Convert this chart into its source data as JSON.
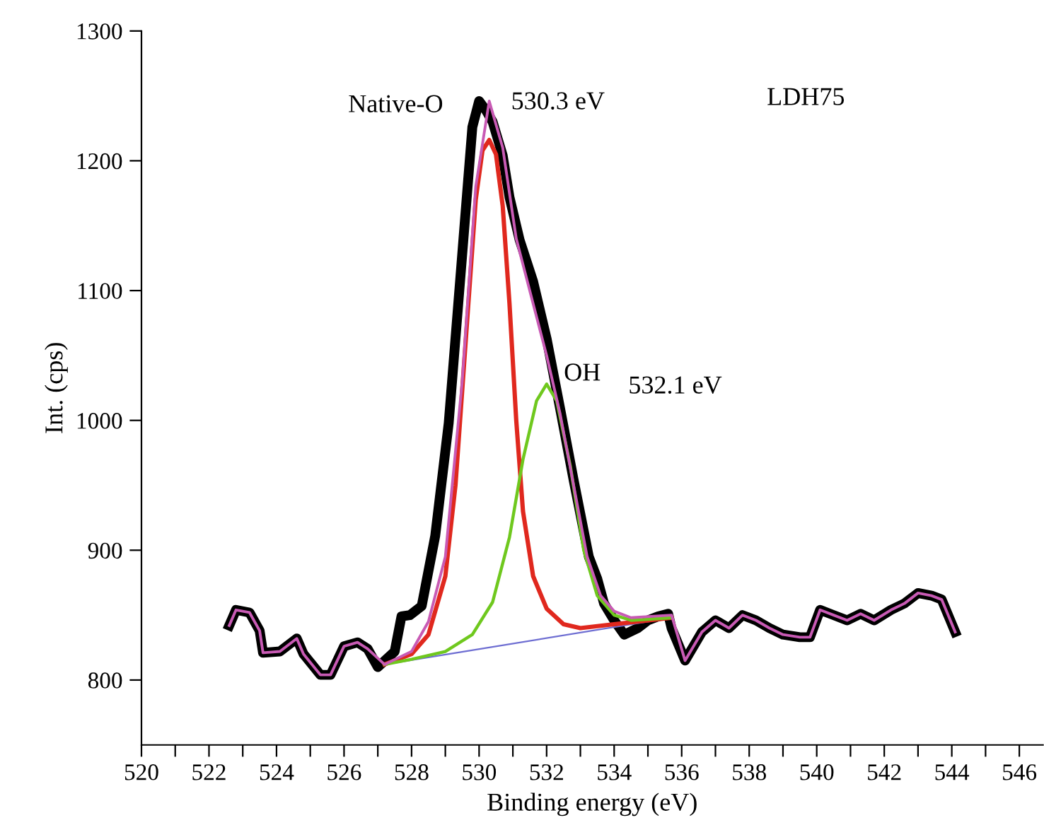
{
  "chart_data": {
    "type": "line",
    "xlabel": "Binding energy (eV)",
    "ylabel": "Int. (cps)",
    "xlim": [
      520,
      546.7
    ],
    "ylim": [
      750,
      1300
    ],
    "xticks": [
      520,
      {
        "value": 521,
        "label": null
      },
      522,
      {
        "value": 523,
        "label": null
      },
      524,
      {
        "value": 525,
        "label": null
      },
      526,
      {
        "value": 527,
        "label": null
      },
      528,
      {
        "value": 529,
        "label": null
      },
      530,
      {
        "value": 531,
        "label": null
      },
      532,
      {
        "value": 533,
        "label": null
      },
      534,
      {
        "value": 535,
        "label": null
      },
      536,
      {
        "value": 537,
        "label": null
      },
      538,
      {
        "value": 539,
        "label": null
      },
      540,
      {
        "value": 541,
        "label": null
      },
      542,
      {
        "value": 543,
        "label": null
      },
      544,
      {
        "value": 545,
        "label": null
      },
      546
    ],
    "yticks": [
      800,
      900,
      1000,
      1100,
      1200,
      1300
    ],
    "grid": false,
    "legend": false,
    "marker": "none",
    "line_style": "solid",
    "series": [
      {
        "color": "#000000",
        "x": [
          522.6,
          522.8,
          523.2,
          523.5,
          523.6,
          524.1,
          524.6,
          524.8,
          525.3,
          525.6,
          526.0,
          526.4,
          526.7,
          527.0,
          527.5,
          527.7,
          527.95,
          528.3,
          528.7,
          529.1,
          529.5,
          529.8,
          530.0,
          530.2,
          530.4,
          530.7,
          530.9,
          531.2,
          531.6,
          532.0,
          532.4,
          532.8,
          533.25,
          533.5,
          533.7,
          534.0,
          534.3,
          534.7,
          535.0,
          535.3,
          535.6,
          535.7,
          536.1,
          536.6,
          537.0,
          537.4,
          537.8,
          538.2,
          538.6,
          539.0,
          539.5,
          539.8,
          540.1,
          540.5,
          540.9,
          541.3,
          541.7,
          542.2,
          542.6,
          543.0,
          543.4,
          543.7,
          544.1
        ],
        "values": [
          842,
          854,
          852,
          838,
          821,
          822,
          832,
          820,
          804,
          804,
          826,
          829,
          824,
          810,
          822,
          849,
          850,
          857,
          911,
          998,
          1128,
          1226,
          1246,
          1239,
          1230,
          1204,
          1172,
          1139,
          1107,
          1063,
          1009,
          954,
          895,
          878,
          859,
          846,
          835,
          840,
          846,
          849,
          851,
          840,
          815,
          837,
          846,
          840,
          850,
          846,
          840,
          835,
          833,
          833,
          854,
          850,
          846,
          851,
          846,
          854,
          859,
          867,
          865,
          862,
          837
        ]
      },
      {
        "color": "#6e6ed2",
        "x": [
          527.2,
          535.7
        ],
        "values": [
          812,
          848
        ]
      },
      {
        "color": "#e0281e",
        "x": [
          527.2,
          528,
          528.5,
          529,
          529.3,
          529.6,
          529.9,
          530.1,
          530.3,
          530.5,
          530.7,
          530.9,
          531.1,
          531.3,
          531.6,
          532,
          532.5,
          533,
          534,
          535.7
        ],
        "values": [
          812,
          820,
          835,
          880,
          950,
          1060,
          1170,
          1208,
          1216,
          1205,
          1165,
          1090,
          1000,
          930,
          880,
          855,
          843,
          840,
          843,
          848
        ]
      },
      {
        "color": "#6fc81e",
        "x": [
          527.2,
          528,
          529,
          529.8,
          530.4,
          530.9,
          531.3,
          531.7,
          532.0,
          532.3,
          532.7,
          533.1,
          533.5,
          534,
          534.5,
          535.7
        ],
        "values": [
          812,
          816,
          822,
          835,
          860,
          910,
          970,
          1015,
          1028,
          1015,
          965,
          900,
          865,
          850,
          846,
          848
        ]
      },
      {
        "color": "#c85ab4",
        "x": [
          522.6,
          522.8,
          523.2,
          523.5,
          523.6,
          524.1,
          524.6,
          524.8,
          525.3,
          525.6,
          526.0,
          526.4,
          526.7,
          527.2,
          528,
          528.5,
          529,
          529.5,
          529.9,
          530.3,
          530.7,
          531.1,
          531.6,
          532,
          532.4,
          532.8,
          533.2,
          533.6,
          534,
          534.5,
          535.7,
          536.1,
          536.6,
          537.0,
          537.4,
          537.8,
          538.2,
          538.6,
          539.0,
          539.5,
          539.8,
          540.1,
          540.5,
          540.9,
          541.3,
          541.7,
          542.2,
          542.6,
          543.0,
          543.4,
          543.7,
          544.1
        ],
        "values": [
          842,
          854,
          852,
          838,
          821,
          822,
          832,
          820,
          804,
          804,
          826,
          829,
          824,
          812,
          822,
          845,
          895,
          1030,
          1180,
          1246,
          1210,
          1140,
          1090,
          1050,
          1005,
          950,
          895,
          865,
          853,
          848,
          850,
          815,
          837,
          846,
          840,
          850,
          846,
          840,
          835,
          833,
          833,
          854,
          850,
          846,
          851,
          846,
          854,
          859,
          867,
          865,
          862,
          837
        ]
      }
    ],
    "annotations": [
      "Native-O",
      "530.3 eV",
      "OH",
      "532.1 eV",
      "LDH75"
    ]
  }
}
